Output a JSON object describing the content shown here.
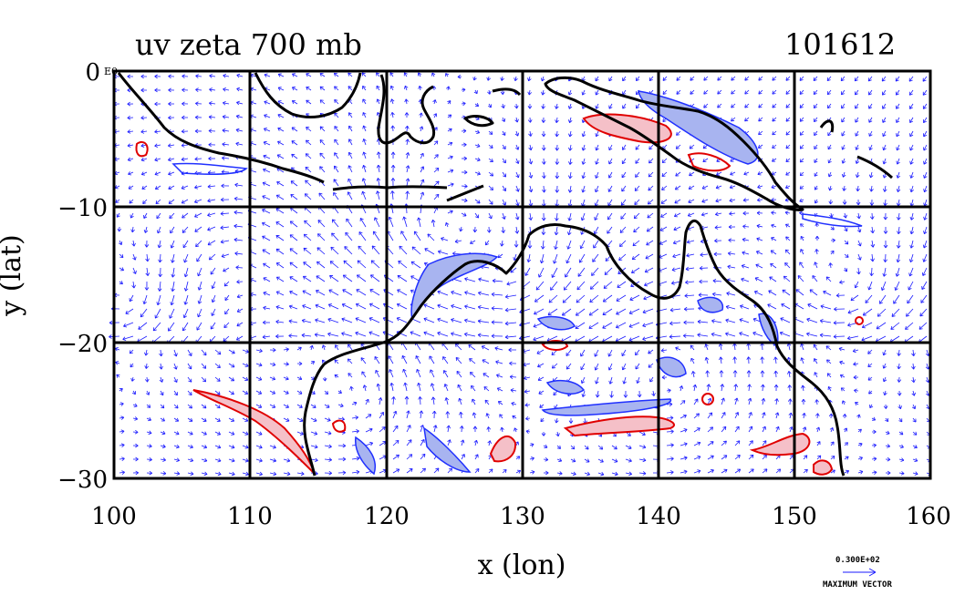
{
  "figure": {
    "title": "uv zeta 700 mb",
    "date_code": "101612",
    "xlabel": "x (lon)",
    "ylabel": "y (lat)",
    "corner_tag": "E0",
    "x_ticks": [
      "100",
      "110",
      "120",
      "130",
      "140",
      "150",
      "160"
    ],
    "y_ticks": [
      "0",
      "−10",
      "−20",
      "−30"
    ],
    "xlim": [
      100,
      160
    ],
    "ylim": [
      -30,
      0
    ],
    "vector_legend": {
      "value_text": "0.300E+02",
      "caption": "MAXIMUM VECTOR"
    }
  },
  "colors": {
    "coastline": "#000000",
    "vector": "#1a1aff",
    "positive_contour": "#e00000",
    "positive_fill": "#f5c0c8",
    "negative_contour": "#2030ff",
    "negative_fill": "#a8b4f0",
    "grid": "#000000"
  }
}
